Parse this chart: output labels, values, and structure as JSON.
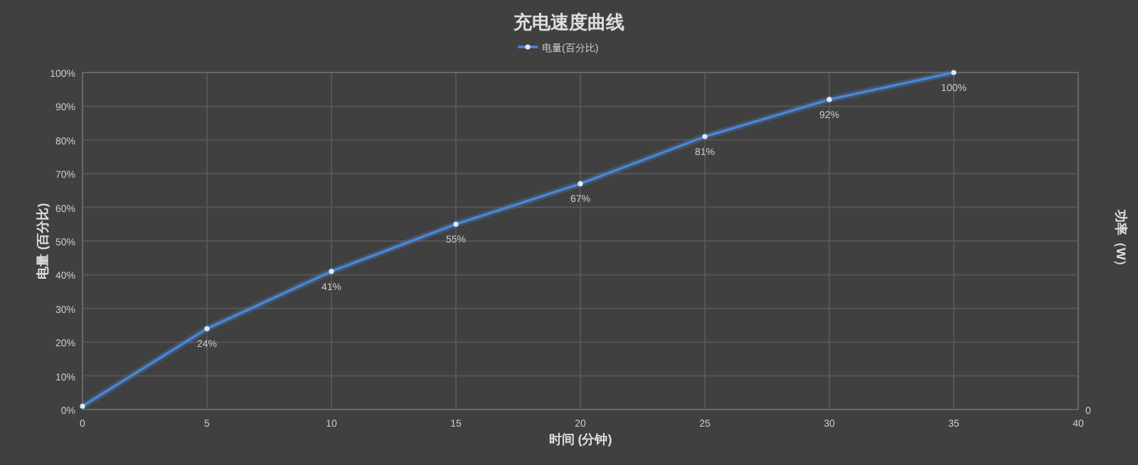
{
  "chart_data": {
    "type": "line",
    "title": "充电速度曲线",
    "xlabel": "时间 (分钟)",
    "ylabel": "电量 (百分比)",
    "y2label": "功率（W）",
    "x": [
      0,
      5,
      10,
      15,
      20,
      25,
      30,
      35
    ],
    "series": [
      {
        "name": "电量(百分比)",
        "color": "#4a86d4",
        "values": [
          1,
          24,
          41,
          55,
          67,
          81,
          92,
          100
        ],
        "value_labels": [
          null,
          "24%",
          "41%",
          "55%",
          "67%",
          "81%",
          "92%",
          "100%"
        ]
      }
    ],
    "xlim": [
      0,
      40
    ],
    "xticks": [
      0,
      5,
      10,
      15,
      20,
      25,
      30,
      35,
      40
    ],
    "ylim": [
      0,
      100
    ],
    "yticks": [
      {
        "value": 0,
        "label": "0%"
      },
      {
        "value": 10,
        "label": "10%"
      },
      {
        "value": 20,
        "label": "20%"
      },
      {
        "value": 30,
        "label": "30%"
      },
      {
        "value": 40,
        "label": "40%"
      },
      {
        "value": 50,
        "label": "50%"
      },
      {
        "value": 60,
        "label": "60%"
      },
      {
        "value": 70,
        "label": "70%"
      },
      {
        "value": 80,
        "label": "80%"
      },
      {
        "value": 90,
        "label": "90%"
      },
      {
        "value": 100,
        "label": "100%"
      }
    ],
    "annotations": [
      "0"
    ],
    "grid": true,
    "legend": "top",
    "marker": "circle",
    "line_style": "solid"
  }
}
